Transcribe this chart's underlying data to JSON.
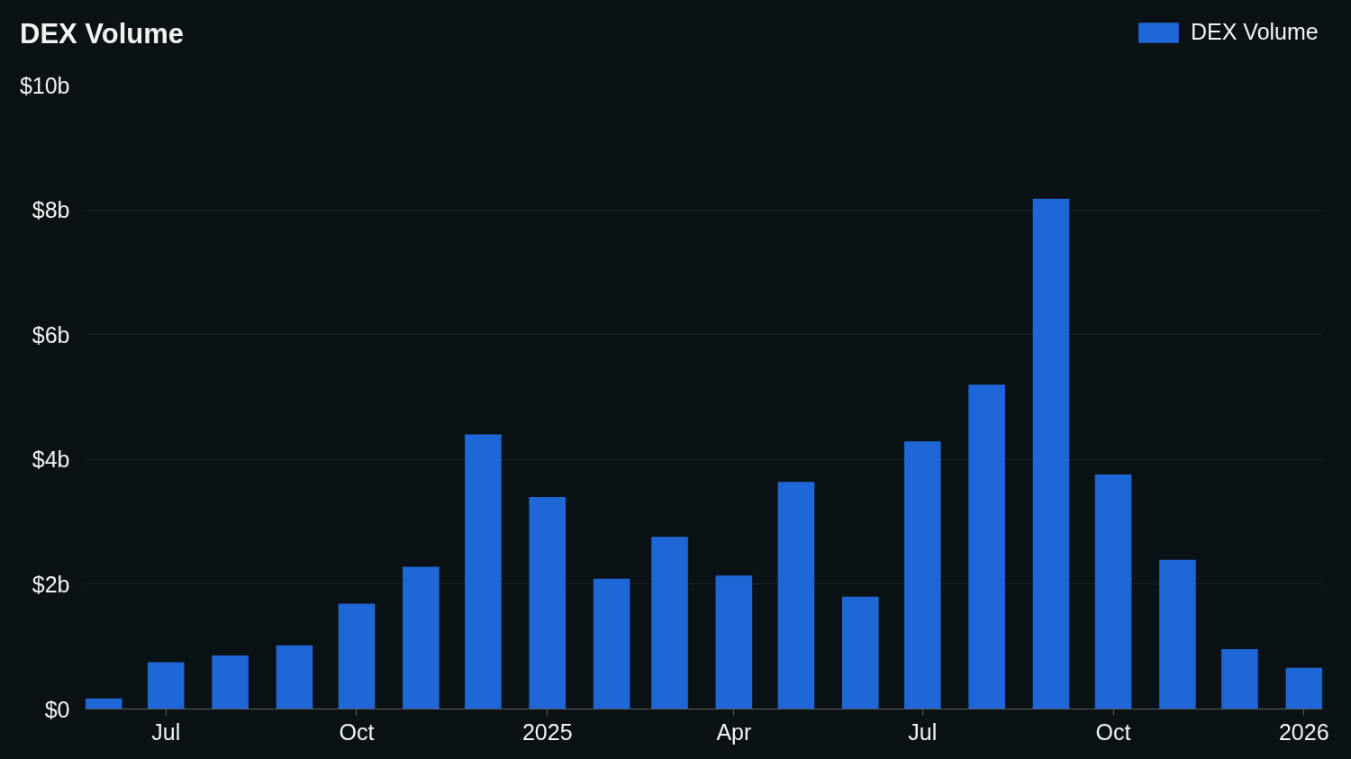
{
  "chart_data": {
    "type": "bar",
    "title": "DEX Volume",
    "x": [
      "2024-06",
      "2024-07",
      "2024-08",
      "2024-09",
      "2024-10",
      "2024-11",
      "2024-12",
      "2025-01",
      "2025-02",
      "2025-03",
      "2025-04",
      "2025-05",
      "2025-06",
      "2025-07",
      "2025-08",
      "2025-09",
      "2025-10",
      "2025-11",
      "2025-12",
      "2026-01"
    ],
    "series": [
      {
        "name": "DEX Volume",
        "color": "#1f67d6",
        "values": [
          0.17,
          0.75,
          0.86,
          1.02,
          1.69,
          2.28,
          4.4,
          3.4,
          2.09,
          2.76,
          2.14,
          3.64,
          1.8,
          4.29,
          5.2,
          8.18,
          3.76,
          2.39,
          0.96,
          0.66
        ]
      }
    ],
    "xlim": [
      "2024-05-23",
      "2026-01-10"
    ],
    "xticks": [
      {
        "value": "2024-07",
        "label": "Jul"
      },
      {
        "value": "2024-10",
        "label": "Oct"
      },
      {
        "value": "2025-01",
        "label": "2025"
      },
      {
        "value": "2025-04",
        "label": "Apr"
      },
      {
        "value": "2025-07",
        "label": "Jul"
      },
      {
        "value": "2025-10",
        "label": "Oct"
      },
      {
        "value": "2026-01",
        "label": "2026"
      }
    ],
    "ylim": [
      0,
      10
    ],
    "yticks": [
      {
        "value": 0,
        "label": "$0"
      },
      {
        "value": 2,
        "label": "$2b"
      },
      {
        "value": 4,
        "label": "$4b"
      },
      {
        "value": 6,
        "label": "$6b"
      },
      {
        "value": 8,
        "label": "$8b"
      },
      {
        "value": 10,
        "label": "$10b"
      }
    ],
    "grid": "y",
    "legend": "top right"
  }
}
